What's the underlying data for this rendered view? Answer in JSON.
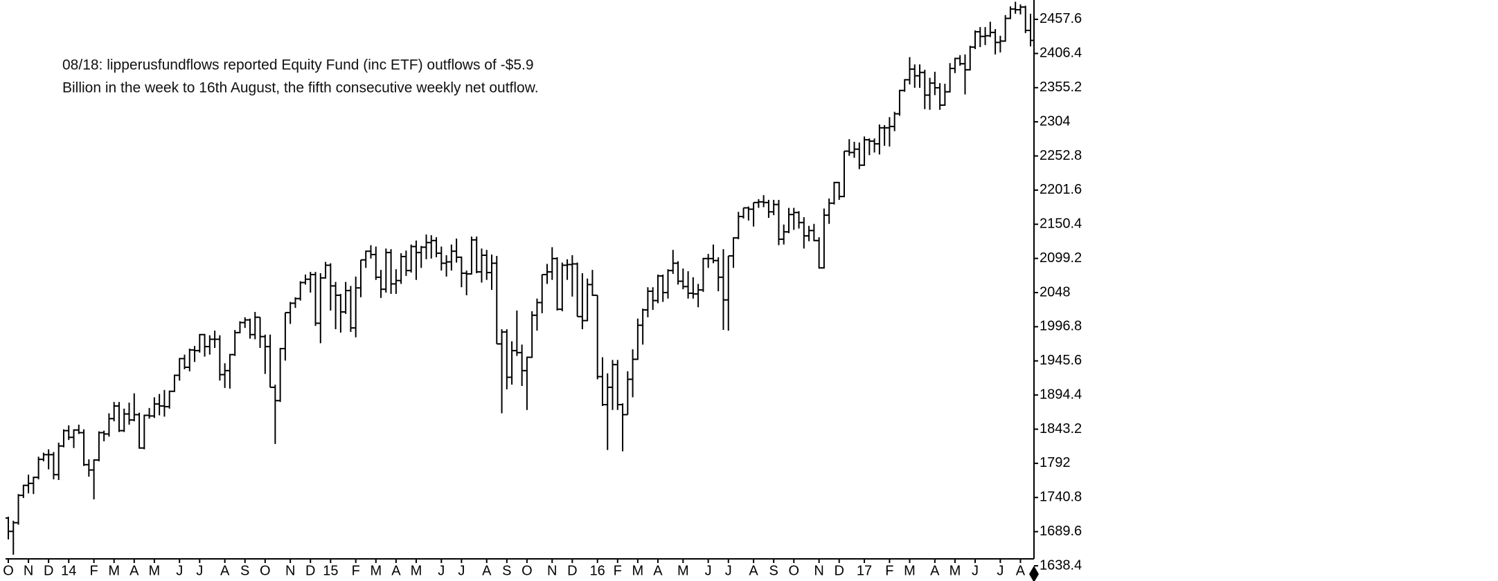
{
  "chart_data": {
    "type": "ohlc",
    "annotation": [
      "08/18: lipperusfundflows reported Equity Fund (inc ETF) outflows of -$5.9",
      "Billion in the week to 16th August, the fifth consecutive weekly net outflow."
    ],
    "color": "#000000",
    "ylim": [
      1648.8,
      2486.6
    ],
    "yticks": [
      1638.4,
      1689.6,
      1740.8,
      1792,
      1843.2,
      1894.4,
      1945.6,
      1996.8,
      2048,
      2099.2,
      2150.4,
      2201.6,
      2252.8,
      2304,
      2355.2,
      2406.4,
      2457.6
    ],
    "categories": [
      "O",
      null,
      null,
      null,
      "N",
      null,
      null,
      null,
      "D",
      null,
      null,
      null,
      "14",
      null,
      null,
      null,
      null,
      "F",
      null,
      null,
      null,
      "M",
      null,
      null,
      null,
      "A",
      null,
      null,
      null,
      "M",
      null,
      null,
      null,
      null,
      "J",
      null,
      null,
      null,
      "J",
      null,
      null,
      null,
      null,
      "A",
      null,
      null,
      null,
      "S",
      null,
      null,
      null,
      "O",
      null,
      null,
      null,
      null,
      "N",
      null,
      null,
      null,
      "D",
      null,
      null,
      null,
      "15",
      null,
      null,
      null,
      null,
      "F",
      null,
      null,
      null,
      "M",
      null,
      null,
      null,
      "A",
      null,
      null,
      null,
      "M",
      null,
      null,
      null,
      null,
      "J",
      null,
      null,
      null,
      "J",
      null,
      null,
      null,
      null,
      "A",
      null,
      null,
      null,
      "S",
      null,
      null,
      null,
      "O",
      null,
      null,
      null,
      null,
      "N",
      null,
      null,
      null,
      "D",
      null,
      null,
      null,
      null,
      "16",
      null,
      null,
      null,
      "F",
      null,
      null,
      null,
      "M",
      null,
      null,
      null,
      "A",
      null,
      null,
      null,
      null,
      "M",
      null,
      null,
      null,
      null,
      "J",
      null,
      null,
      null,
      "J",
      null,
      null,
      null,
      null,
      "A",
      null,
      null,
      null,
      "S",
      null,
      null,
      null,
      "O",
      null,
      null,
      null,
      null,
      "N",
      null,
      null,
      null,
      "D",
      null,
      null,
      null,
      null,
      "17",
      null,
      null,
      null,
      null,
      "F",
      null,
      null,
      null,
      "M",
      null,
      null,
      null,
      null,
      "A",
      null,
      null,
      null,
      "M",
      null,
      null,
      null,
      "J",
      null,
      null,
      null,
      null,
      "J",
      null,
      null,
      null,
      "A",
      null,
      null
    ],
    "ohlc": [
      [
        1710,
        1712,
        1678,
        1690
      ],
      [
        1690,
        1706,
        1655,
        1703
      ],
      [
        1703,
        1746,
        1700,
        1744
      ],
      [
        1744,
        1760,
        1740,
        1759
      ],
      [
        1759,
        1775,
        1747,
        1762
      ],
      [
        1762,
        1772,
        1746,
        1771
      ],
      [
        1771,
        1802,
        1768,
        1798
      ],
      [
        1798,
        1808,
        1795,
        1805
      ],
      [
        1805,
        1813,
        1783,
        1805
      ],
      [
        1805,
        1809,
        1768,
        1775
      ],
      [
        1775,
        1823,
        1767,
        1818
      ],
      [
        1818,
        1843,
        1816,
        1841
      ],
      [
        1841,
        1849,
        1827,
        1831
      ],
      [
        1831,
        1843,
        1815,
        1842
      ],
      [
        1842,
        1850,
        1836,
        1838
      ],
      [
        1838,
        1843,
        1788,
        1790
      ],
      [
        1790,
        1798,
        1772,
        1782
      ],
      [
        1782,
        1798,
        1738,
        1797
      ],
      [
        1797,
        1840,
        1795,
        1838
      ],
      [
        1838,
        1841,
        1825,
        1836
      ],
      [
        1836,
        1867,
        1832,
        1859
      ],
      [
        1859,
        1884,
        1855,
        1878
      ],
      [
        1878,
        1884,
        1839,
        1841
      ],
      [
        1841,
        1874,
        1839,
        1866
      ],
      [
        1866,
        1883,
        1850,
        1857
      ],
      [
        1857,
        1897,
        1855,
        1865
      ],
      [
        1865,
        1868,
        1814,
        1815
      ],
      [
        1815,
        1865,
        1813,
        1864
      ],
      [
        1864,
        1875,
        1859,
        1863
      ],
      [
        1863,
        1891,
        1860,
        1881
      ],
      [
        1881,
        1896,
        1864,
        1878
      ],
      [
        1878,
        1902,
        1862,
        1877
      ],
      [
        1877,
        1901,
        1874,
        1900
      ],
      [
        1900,
        1925,
        1899,
        1924
      ],
      [
        1924,
        1950,
        1916,
        1949
      ],
      [
        1949,
        1955,
        1933,
        1936
      ],
      [
        1936,
        1964,
        1930,
        1962
      ],
      [
        1962,
        1968,
        1944,
        1961
      ],
      [
        1961,
        1986,
        1958,
        1985
      ],
      [
        1985,
        1986,
        1952,
        1967
      ],
      [
        1967,
        1984,
        1955,
        1978
      ],
      [
        1978,
        1991,
        1965,
        1978
      ],
      [
        1978,
        1984,
        1916,
        1925
      ],
      [
        1925,
        1942,
        1905,
        1931
      ],
      [
        1931,
        1956,
        1904,
        1955
      ],
      [
        1955,
        1992,
        1953,
        1988
      ],
      [
        1988,
        2005,
        1987,
        2003
      ],
      [
        2003,
        2011,
        1995,
        2007
      ],
      [
        2007,
        2009,
        1979,
        1985
      ],
      [
        1985,
        2019,
        1978,
        2011
      ],
      [
        2011,
        2011,
        1965,
        1982
      ],
      [
        1982,
        1985,
        1926,
        1967
      ],
      [
        1967,
        1985,
        1906,
        1906
      ],
      [
        1906,
        1910,
        1821,
        1886
      ],
      [
        1886,
        1965,
        1884,
        1964
      ],
      [
        1964,
        2018,
        1946,
        2018
      ],
      [
        2018,
        2034,
        2001,
        2032
      ],
      [
        2032,
        2041,
        2025,
        2039
      ],
      [
        2039,
        2065,
        2036,
        2063
      ],
      [
        2063,
        2075,
        2060,
        2068
      ],
      [
        2068,
        2079,
        2048,
        2075
      ],
      [
        2075,
        2079,
        1998,
        2002
      ],
      [
        2002,
        2077,
        1972,
        2070
      ],
      [
        2070,
        2094,
        2069,
        2089
      ],
      [
        2089,
        2092,
        2021,
        2058
      ],
      [
        2058,
        2064,
        1993,
        2044
      ],
      [
        2044,
        2046,
        1988,
        2019
      ],
      [
        2019,
        2064,
        2016,
        2051
      ],
      [
        2051,
        2058,
        1989,
        1995
      ],
      [
        1995,
        2072,
        1981,
        2055
      ],
      [
        2055,
        2097,
        2041,
        2097
      ],
      [
        2097,
        2111,
        2085,
        2110
      ],
      [
        2110,
        2119,
        2099,
        2105
      ],
      [
        2105,
        2117,
        2067,
        2071
      ],
      [
        2071,
        2082,
        2040,
        2053
      ],
      [
        2053,
        2114,
        2048,
        2108
      ],
      [
        2108,
        2113,
        2046,
        2061
      ],
      [
        2061,
        2083,
        2046,
        2066
      ],
      [
        2066,
        2107,
        2061,
        2102
      ],
      [
        2102,
        2111,
        2073,
        2081
      ],
      [
        2081,
        2120,
        2078,
        2117
      ],
      [
        2117,
        2126,
        2067,
        2108
      ],
      [
        2108,
        2118,
        2085,
        2116
      ],
      [
        2116,
        2135,
        2098,
        2123
      ],
      [
        2123,
        2134,
        2099,
        2126
      ],
      [
        2126,
        2131,
        2101,
        2107
      ],
      [
        2107,
        2117,
        2081,
        2092
      ],
      [
        2092,
        2104,
        2072,
        2094
      ],
      [
        2094,
        2120,
        2081,
        2110
      ],
      [
        2110,
        2129,
        2093,
        2101
      ],
      [
        2101,
        2102,
        2056,
        2077
      ],
      [
        2077,
        2081,
        2044,
        2076
      ],
      [
        2076,
        2132,
        2075,
        2127
      ],
      [
        2127,
        2132,
        2077,
        2079
      ],
      [
        2079,
        2114,
        2063,
        2104
      ],
      [
        2104,
        2112,
        2067,
        2078
      ],
      [
        2078,
        2105,
        2052,
        2092
      ],
      [
        2092,
        2103,
        1971,
        1971
      ],
      [
        1971,
        1993,
        1867,
        1989
      ],
      [
        1989,
        1993,
        1903,
        1921
      ],
      [
        1921,
        1975,
        1910,
        1961
      ],
      [
        1961,
        2021,
        1953,
        1958
      ],
      [
        1958,
        1970,
        1908,
        1931
      ],
      [
        1931,
        1952,
        1872,
        1951
      ],
      [
        1951,
        2020,
        1950,
        2014
      ],
      [
        2014,
        2039,
        1991,
        2033
      ],
      [
        2033,
        2075,
        2017,
        2075
      ],
      [
        2075,
        2091,
        2061,
        2079
      ],
      [
        2079,
        2116,
        2067,
        2099
      ],
      [
        2099,
        2101,
        2021,
        2023
      ],
      [
        2023,
        2093,
        2020,
        2089
      ],
      [
        2089,
        2098,
        2067,
        2090
      ],
      [
        2090,
        2104,
        2042,
        2091
      ],
      [
        2091,
        2093,
        2012,
        2012
      ],
      [
        2012,
        2077,
        1993,
        2006
      ],
      [
        2006,
        2069,
        2005,
        2060
      ],
      [
        2060,
        2082,
        2043,
        2044
      ],
      [
        2044,
        2044,
        1918,
        1922
      ],
      [
        1922,
        1951,
        1878,
        1880
      ],
      [
        1880,
        1927,
        1812,
        1906
      ],
      [
        1906,
        1947,
        1872,
        1940
      ],
      [
        1940,
        1947,
        1872,
        1880
      ],
      [
        1880,
        1882,
        1810,
        1865
      ],
      [
        1865,
        1930,
        1865,
        1918
      ],
      [
        1918,
        1963,
        1891,
        1948
      ],
      [
        1948,
        2009,
        1947,
        1999
      ],
      [
        1999,
        2024,
        1970,
        2022
      ],
      [
        2022,
        2056,
        2011,
        2050
      ],
      [
        2050,
        2056,
        2022,
        2036
      ],
      [
        2036,
        2075,
        2032,
        2073
      ],
      [
        2073,
        2075,
        2034,
        2048
      ],
      [
        2048,
        2083,
        2039,
        2081
      ],
      [
        2081,
        2112,
        2076,
        2092
      ],
      [
        2092,
        2095,
        2060,
        2065
      ],
      [
        2065,
        2084,
        2053,
        2057
      ],
      [
        2057,
        2080,
        2039,
        2047
      ],
      [
        2047,
        2071,
        2039,
        2046
      ],
      [
        2046,
        2061,
        2026,
        2052
      ],
      [
        2052,
        2100,
        2049,
        2099
      ],
      [
        2099,
        2106,
        2085,
        2099
      ],
      [
        2099,
        2120,
        2092,
        2096
      ],
      [
        2096,
        2101,
        2050,
        2071
      ],
      [
        2071,
        2113,
        1992,
        2037
      ],
      [
        2037,
        2103,
        1991,
        2103
      ],
      [
        2103,
        2131,
        2085,
        2130
      ],
      [
        2130,
        2169,
        2128,
        2162
      ],
      [
        2162,
        2175,
        2159,
        2175
      ],
      [
        2175,
        2177,
        2156,
        2173
      ],
      [
        2173,
        2183,
        2147,
        2183
      ],
      [
        2183,
        2188,
        2175,
        2184
      ],
      [
        2184,
        2194,
        2176,
        2183
      ],
      [
        2183,
        2187,
        2160,
        2169
      ],
      [
        2169,
        2187,
        2164,
        2180
      ],
      [
        2180,
        2187,
        2119,
        2128
      ],
      [
        2128,
        2150,
        2120,
        2139
      ],
      [
        2139,
        2175,
        2137,
        2165
      ],
      [
        2165,
        2175,
        2142,
        2168
      ],
      [
        2168,
        2170,
        2144,
        2153
      ],
      [
        2153,
        2161,
        2114,
        2133
      ],
      [
        2133,
        2148,
        2125,
        2141
      ],
      [
        2141,
        2151,
        2125,
        2126
      ],
      [
        2126,
        2131,
        2084,
        2085
      ],
      [
        2085,
        2174,
        2084,
        2164
      ],
      [
        2164,
        2189,
        2151,
        2182
      ],
      [
        2182,
        2214,
        2180,
        2213
      ],
      [
        2213,
        2214,
        2187,
        2192
      ],
      [
        2192,
        2260,
        2191,
        2260
      ],
      [
        2260,
        2278,
        2253,
        2258
      ],
      [
        2258,
        2274,
        2250,
        2263
      ],
      [
        2263,
        2273,
        2233,
        2239
      ],
      [
        2239,
        2282,
        2238,
        2277
      ],
      [
        2277,
        2279,
        2254,
        2275
      ],
      [
        2275,
        2279,
        2258,
        2271
      ],
      [
        2271,
        2300,
        2255,
        2295
      ],
      [
        2295,
        2299,
        2268,
        2295
      ],
      [
        2295,
        2311,
        2267,
        2297
      ],
      [
        2297,
        2319,
        2290,
        2316
      ],
      [
        2316,
        2352,
        2313,
        2351
      ],
      [
        2351,
        2368,
        2349,
        2367
      ],
      [
        2367,
        2401,
        2360,
        2383
      ],
      [
        2383,
        2390,
        2355,
        2373
      ],
      [
        2373,
        2390,
        2355,
        2378
      ],
      [
        2378,
        2382,
        2323,
        2344
      ],
      [
        2344,
        2370,
        2322,
        2362
      ],
      [
        2362,
        2379,
        2344,
        2355
      ],
      [
        2355,
        2362,
        2322,
        2329
      ],
      [
        2329,
        2361,
        2328,
        2349
      ],
      [
        2349,
        2392,
        2348,
        2384
      ],
      [
        2384,
        2400,
        2377,
        2399
      ],
      [
        2399,
        2404,
        2388,
        2391
      ],
      [
        2391,
        2405,
        2345,
        2382
      ],
      [
        2382,
        2418,
        2381,
        2416
      ],
      [
        2416,
        2441,
        2413,
        2439
      ],
      [
        2439,
        2446,
        2416,
        2432
      ],
      [
        2432,
        2446,
        2419,
        2433
      ],
      [
        2433,
        2454,
        2431,
        2438
      ],
      [
        2438,
        2443,
        2405,
        2423
      ],
      [
        2423,
        2433,
        2408,
        2425
      ],
      [
        2425,
        2464,
        2424,
        2459
      ],
      [
        2459,
        2477,
        2458,
        2473
      ],
      [
        2473,
        2484,
        2466,
        2472
      ],
      [
        2472,
        2480,
        2465,
        2476
      ],
      [
        2476,
        2478,
        2437,
        2441
      ],
      [
        2441,
        2466,
        2417,
        2426
      ]
    ]
  }
}
